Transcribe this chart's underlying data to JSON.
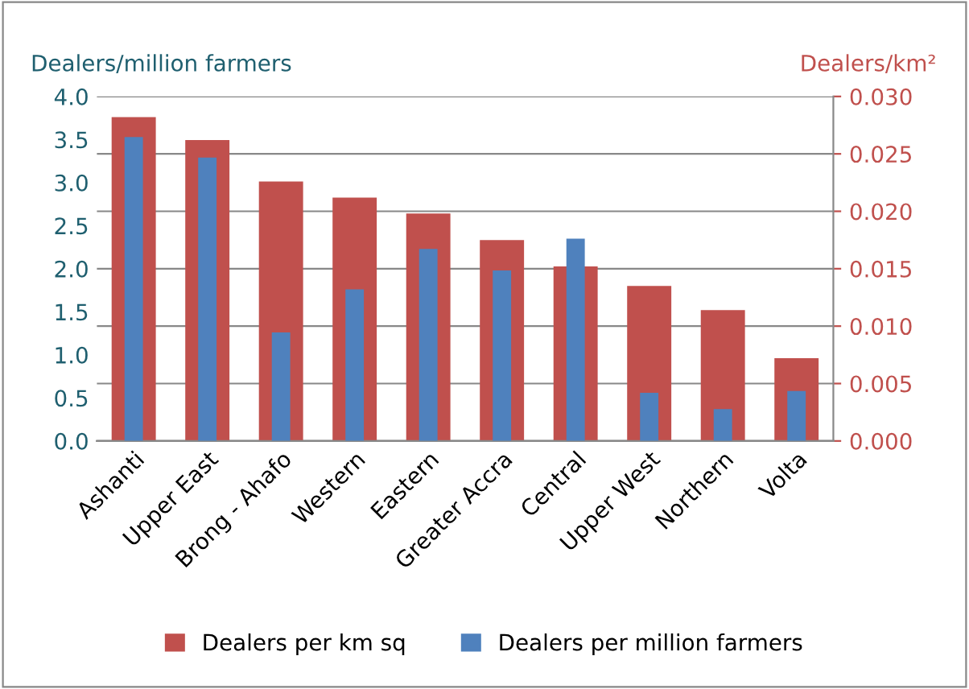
{
  "chart_data": {
    "type": "bar",
    "ylabel": "Dealers/million farmers",
    "y2label": "Dealers/km²",
    "categories": [
      "Ashanti",
      "Upper East",
      "Brong - Ahafo",
      "Western",
      "Eastern",
      "Greater Accra",
      "Central",
      "Upper West",
      "Northern",
      "Volta"
    ],
    "series": [
      {
        "name": "Dealers per km sq",
        "color": "#c0504d",
        "axis": "y2",
        "values": [
          0.0282,
          0.0262,
          0.0226,
          0.0212,
          0.0198,
          0.0175,
          0.0152,
          0.0135,
          0.0114,
          0.0072
        ]
      },
      {
        "name": "Dealers per million farmers",
        "color": "#4f81bd",
        "values": [
          3.53,
          3.29,
          1.26,
          1.76,
          2.23,
          1.98,
          2.35,
          0.56,
          0.37,
          0.58
        ]
      }
    ],
    "ylim": [
      0,
      4.0
    ],
    "yticks": [
      {
        "value": 0,
        "label": "0.0"
      },
      {
        "value": 0.5,
        "label": "0.5"
      },
      {
        "value": 1,
        "label": "1.0"
      },
      {
        "value": 1.5,
        "label": "1.5"
      },
      {
        "value": 2,
        "label": "2.0"
      },
      {
        "value": 2.5,
        "label": "2.5"
      },
      {
        "value": 3,
        "label": "3.0"
      },
      {
        "value": 3.5,
        "label": "3.5"
      },
      {
        "value": 4,
        "label": "4.0"
      }
    ],
    "y2lim": [
      0,
      0.03
    ],
    "y2ticks": [
      {
        "value": 0,
        "label": "0.000"
      },
      {
        "value": 0.005,
        "label": "0.005"
      },
      {
        "value": 0.01,
        "label": "0.010"
      },
      {
        "value": 0.015,
        "label": "0.015"
      },
      {
        "value": 0.02,
        "label": "0.020"
      },
      {
        "value": 0.025,
        "label": "0.025"
      },
      {
        "value": 0.03,
        "label": "0.030"
      }
    ],
    "grid": "y",
    "legend": "bottom"
  }
}
